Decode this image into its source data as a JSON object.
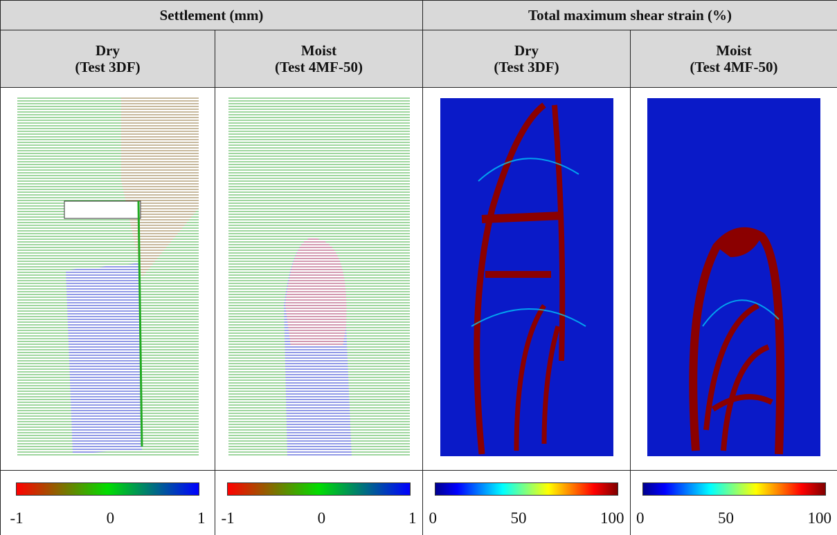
{
  "table": {
    "header": {
      "groups": [
        "Settlement (mm)",
        "Total maximum shear strain (%)"
      ],
      "columns": [
        {
          "condition": "Dry",
          "test": "(Test 3DF)"
        },
        {
          "condition": "Moist",
          "test": "(Test 4MF-50)"
        },
        {
          "condition": "Dry",
          "test": "(Test 3DF)"
        },
        {
          "condition": "Moist",
          "test": "(Test 4MF-50)"
        }
      ]
    },
    "colorbars": [
      {
        "ticks": [
          -1,
          0,
          1
        ]
      },
      {
        "ticks": [
          -1,
          0,
          1
        ]
      },
      {
        "ticks": [
          0,
          50,
          100
        ]
      },
      {
        "ticks": [
          0,
          50,
          100
        ]
      }
    ]
  }
}
